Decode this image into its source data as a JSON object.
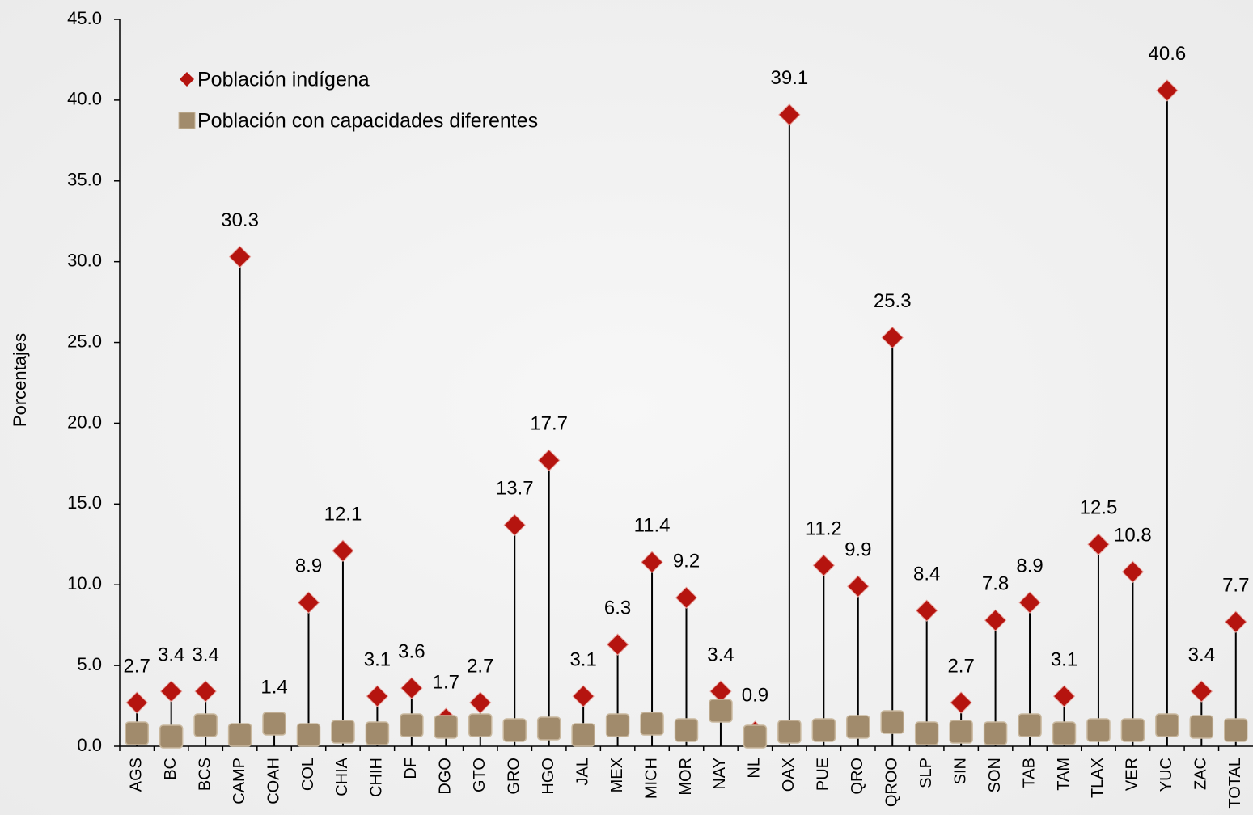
{
  "chart_data": {
    "type": "dot",
    "y_label": "Porcentajes",
    "categories": [
      "AGS",
      "BC",
      "BCS",
      "CAMP",
      "COAH",
      "COL",
      "CHIA",
      "CHIH",
      "DF",
      "DGO",
      "GTO",
      "GRO",
      "HGO",
      "JAL",
      "MEX",
      "MICH",
      "MOR",
      "NAY",
      "NL",
      "OAX",
      "PUE",
      "QRO",
      "QROO",
      "SLP",
      "SIN",
      "SON",
      "TAB",
      "TAM",
      "TLAX",
      "VER",
      "YUC",
      "ZAC",
      "TOTAL"
    ],
    "series": [
      {
        "name": "Población indígena",
        "color": "#b5140f",
        "marker": "diamond",
        "drop_lines": true,
        "data_labels": true,
        "values": [
          2.7,
          3.4,
          3.4,
          30.3,
          1.4,
          8.9,
          12.1,
          3.1,
          3.6,
          1.7,
          2.7,
          13.7,
          17.7,
          3.1,
          6.3,
          11.4,
          9.2,
          3.4,
          0.9,
          39.1,
          11.2,
          9.9,
          25.3,
          8.4,
          2.7,
          7.8,
          8.9,
          3.1,
          12.5,
          10.8,
          40.6,
          3.4,
          7.7
        ]
      },
      {
        "name": "Población con capacidades diferentes",
        "color": "#a18b6c",
        "marker": "square",
        "drop_lines": false,
        "data_labels": false,
        "values": [
          0.8,
          0.6,
          1.3,
          0.7,
          1.4,
          0.7,
          0.9,
          0.8,
          1.3,
          1.2,
          1.3,
          1.0,
          1.1,
          0.7,
          1.3,
          1.4,
          1.0,
          2.2,
          0.6,
          0.9,
          1.0,
          1.2,
          1.5,
          0.8,
          0.9,
          0.8,
          1.3,
          0.8,
          1.0,
          1.0,
          1.3,
          1.2,
          1.0
        ]
      }
    ],
    "ylim": [
      0,
      45
    ],
    "yticks": [
      {
        "value": 0,
        "label": "0.0"
      },
      {
        "value": 5,
        "label": "5.0"
      },
      {
        "value": 10,
        "label": "10.0"
      },
      {
        "value": 15,
        "label": "15.0"
      },
      {
        "value": 20,
        "label": "20.0"
      },
      {
        "value": 25,
        "label": "25.0"
      },
      {
        "value": 30,
        "label": "30.0"
      },
      {
        "value": 35,
        "label": "35.0"
      },
      {
        "value": 40,
        "label": "40.0"
      },
      {
        "value": 45,
        "label": "45.0"
      }
    ],
    "grid": false,
    "legend": "top-left"
  }
}
